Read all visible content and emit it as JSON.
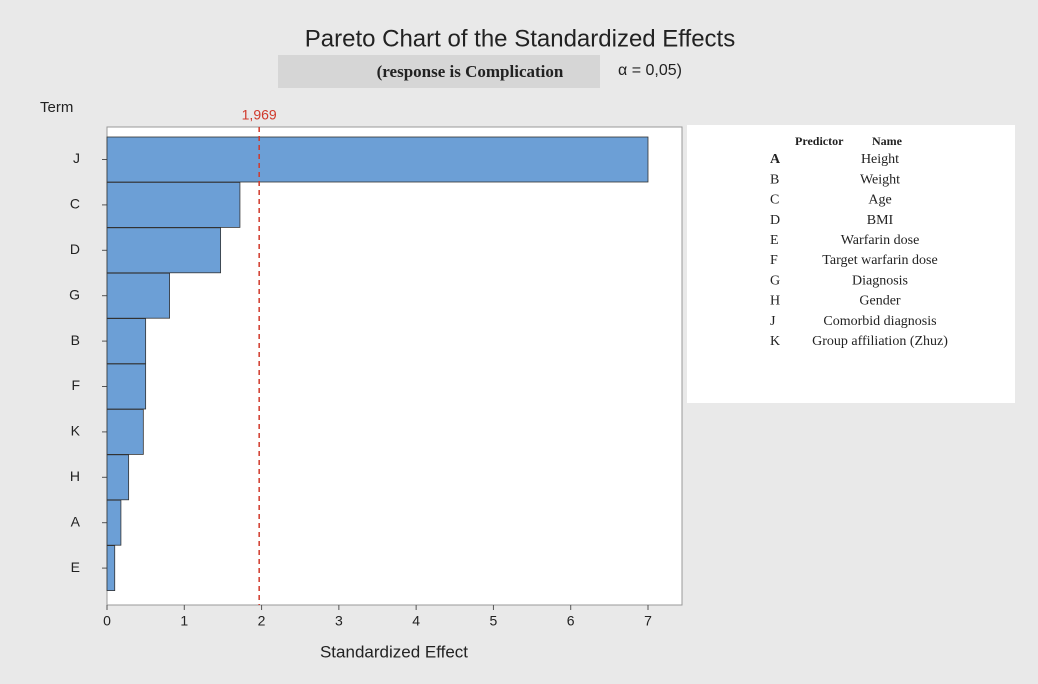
{
  "chart_data": {
    "type": "barh",
    "title": "Pareto Chart of the Standardized Effects",
    "subtitle": "(response is Complication",
    "alpha": "α = 0,05)",
    "y_label": "Term",
    "x_label": "Standardized Effect",
    "categories": [
      "J",
      "C",
      "D",
      "G",
      "B",
      "F",
      "K",
      "H",
      "A",
      "E"
    ],
    "values": [
      7.0,
      1.72,
      1.47,
      0.81,
      0.5,
      0.5,
      0.47,
      0.28,
      0.18,
      0.1
    ],
    "color": "#6c9fd6",
    "reference_line": {
      "value": 1.969,
      "label": "1,969",
      "color": "#d0392b"
    },
    "xlim": [
      0,
      7.44
    ],
    "xticks": [
      0,
      1,
      2,
      3,
      4,
      5,
      6,
      7
    ],
    "legend_table": {
      "headers": [
        "Predictor",
        "Name"
      ],
      "rows": [
        [
          "A",
          "Height"
        ],
        [
          "B",
          "Weight"
        ],
        [
          "C",
          "Age"
        ],
        [
          "D",
          "BMI"
        ],
        [
          "E",
          "Warfarin dose"
        ],
        [
          "F",
          "Target warfarin dose"
        ],
        [
          "G",
          "Diagnosis"
        ],
        [
          "H",
          "Gender"
        ],
        [
          "J",
          "Comorbid diagnosis"
        ],
        [
          "K",
          "Group affiliation (Zhuz)"
        ]
      ]
    }
  }
}
